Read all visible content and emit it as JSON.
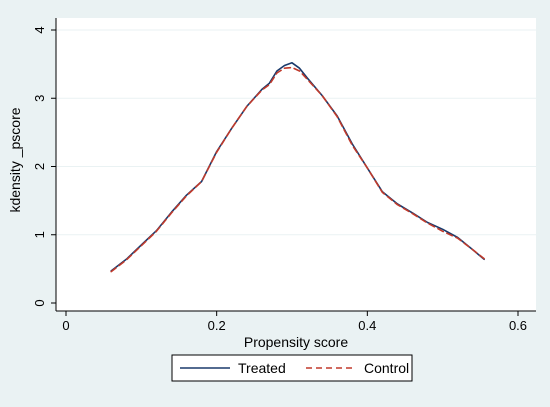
{
  "chart_data": {
    "type": "line",
    "xlabel": "Propensity score",
    "ylabel": "kdensity _pscore",
    "xlim": [
      0,
      0.6
    ],
    "ylim": [
      0,
      4
    ],
    "x_ticks": [
      0,
      0.2,
      0.4,
      0.6
    ],
    "x_tick_labels": [
      "0",
      "0.2",
      "0.4",
      "0.6"
    ],
    "y_ticks": [
      0,
      1,
      2,
      3,
      4
    ],
    "y_tick_labels": [
      "0",
      "1",
      "2",
      "3",
      "4"
    ],
    "grid": "horizontal",
    "legend_position": "bottom",
    "series": [
      {
        "name": "Treated",
        "color": "#1a3a6b",
        "dash": "solid",
        "points": [
          [
            0.06,
            0.47
          ],
          [
            0.08,
            0.64
          ],
          [
            0.1,
            0.85
          ],
          [
            0.12,
            1.06
          ],
          [
            0.14,
            1.33
          ],
          [
            0.16,
            1.58
          ],
          [
            0.18,
            1.78
          ],
          [
            0.2,
            2.22
          ],
          [
            0.22,
            2.56
          ],
          [
            0.24,
            2.88
          ],
          [
            0.26,
            3.13
          ],
          [
            0.27,
            3.22
          ],
          [
            0.28,
            3.4
          ],
          [
            0.29,
            3.48
          ],
          [
            0.3,
            3.52
          ],
          [
            0.31,
            3.44
          ],
          [
            0.32,
            3.3
          ],
          [
            0.34,
            3.04
          ],
          [
            0.36,
            2.74
          ],
          [
            0.38,
            2.33
          ],
          [
            0.4,
            1.98
          ],
          [
            0.42,
            1.63
          ],
          [
            0.44,
            1.45
          ],
          [
            0.46,
            1.32
          ],
          [
            0.48,
            1.18
          ],
          [
            0.5,
            1.08
          ],
          [
            0.52,
            0.96
          ],
          [
            0.54,
            0.78
          ],
          [
            0.555,
            0.64
          ]
        ]
      },
      {
        "name": "Control",
        "color": "#c0392b",
        "dash": "dashed",
        "points": [
          [
            0.06,
            0.46
          ],
          [
            0.08,
            0.63
          ],
          [
            0.1,
            0.84
          ],
          [
            0.12,
            1.05
          ],
          [
            0.14,
            1.32
          ],
          [
            0.16,
            1.57
          ],
          [
            0.18,
            1.78
          ],
          [
            0.2,
            2.21
          ],
          [
            0.22,
            2.56
          ],
          [
            0.24,
            2.88
          ],
          [
            0.26,
            3.12
          ],
          [
            0.27,
            3.2
          ],
          [
            0.28,
            3.37
          ],
          [
            0.29,
            3.44
          ],
          [
            0.3,
            3.45
          ],
          [
            0.31,
            3.4
          ],
          [
            0.32,
            3.28
          ],
          [
            0.34,
            3.04
          ],
          [
            0.36,
            2.73
          ],
          [
            0.38,
            2.31
          ],
          [
            0.4,
            1.98
          ],
          [
            0.42,
            1.62
          ],
          [
            0.44,
            1.44
          ],
          [
            0.46,
            1.31
          ],
          [
            0.48,
            1.17
          ],
          [
            0.5,
            1.05
          ],
          [
            0.52,
            0.95
          ],
          [
            0.54,
            0.78
          ],
          [
            0.555,
            0.65
          ]
        ]
      }
    ]
  }
}
